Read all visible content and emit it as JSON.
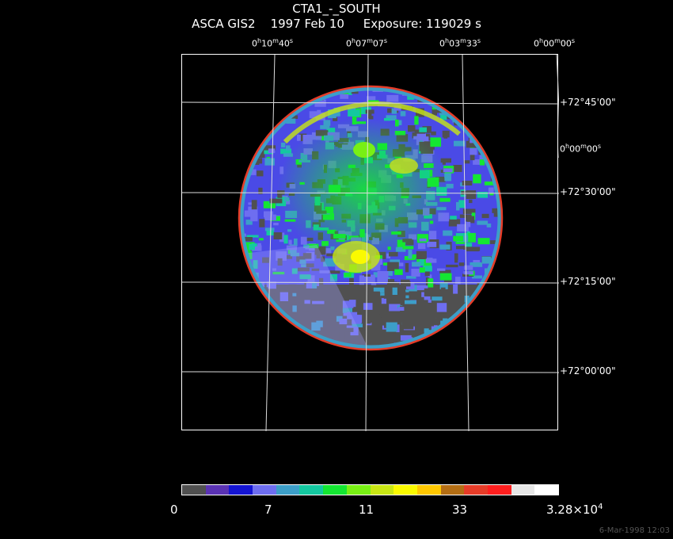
{
  "title": {
    "line1": "CTA1_-_SOUTH",
    "line2": "ASCA GIS2    1997 Feb 10     Exposure: 119029 s"
  },
  "ra_labels": [
    {
      "h": "0",
      "m": "10",
      "s": "40"
    },
    {
      "h": "0",
      "m": "07",
      "s": "07"
    },
    {
      "h": "0",
      "m": "03",
      "s": "33"
    },
    {
      "h": "0",
      "m": "00",
      "s": "00"
    }
  ],
  "ra_side_label": {
    "h": "0",
    "m": "00",
    "s": "00"
  },
  "dec_labels": [
    "+72°45'00\"",
    "+72°30'00\"",
    "+72°15'00\"",
    "+72°00'00\""
  ],
  "colorbar": {
    "colors": [
      "#505050",
      "#5a32b4",
      "#1414d2",
      "#6e6ef0",
      "#3c9ec8",
      "#14c8a0",
      "#14e632",
      "#78f014",
      "#c8e614",
      "#fafa00",
      "#ffc800",
      "#b46e14",
      "#e63c28",
      "#ff1e1e",
      "#e6e6e6",
      "#ffffff"
    ],
    "labels": [
      "0",
      "7",
      "11",
      "33",
      "3.28×10",
      "4"
    ]
  },
  "footer_date": "6-Mar-1998 12:03"
}
